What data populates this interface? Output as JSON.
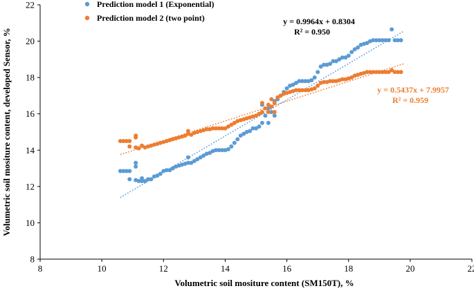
{
  "chart_data": {
    "type": "scatter",
    "xlabel": "Volumetric soil mositure content (SM150T), %",
    "ylabel": "Volumetric soil mositure content, developed Sensor, %",
    "xlim": [
      8,
      22
    ],
    "ylim": [
      8,
      22
    ],
    "xticks": [
      "8",
      "10",
      "12",
      "14",
      "16",
      "18",
      "20",
      "22"
    ],
    "yticks": [
      "8",
      "10",
      "12",
      "14",
      "16",
      "18",
      "20",
      "22"
    ],
    "grid": false,
    "legend_position": "top-left",
    "series": [
      {
        "name": "Prediction model 1 (Exponential)",
        "color": "#5B9BD5",
        "marker": "circle",
        "trendline": {
          "slope": 0.9964,
          "intercept": 0.8304,
          "x_range": [
            10.6,
            19.8
          ],
          "style": "dotted"
        },
        "equation": "y = 0.9964x + 0.8304",
        "r2": "R² = 0.950",
        "points": [
          [
            10.6,
            12.85
          ],
          [
            10.7,
            12.85
          ],
          [
            10.8,
            12.85
          ],
          [
            10.9,
            12.85
          ],
          [
            10.9,
            12.4
          ],
          [
            11.1,
            13.1
          ],
          [
            11.1,
            13.3
          ],
          [
            11.1,
            12.35
          ],
          [
            11.2,
            12.3
          ],
          [
            11.3,
            12.45
          ],
          [
            11.3,
            12.3
          ],
          [
            11.4,
            12.3
          ],
          [
            11.5,
            12.4
          ],
          [
            11.6,
            12.4
          ],
          [
            11.7,
            12.55
          ],
          [
            11.8,
            12.6
          ],
          [
            11.9,
            12.7
          ],
          [
            12.0,
            12.85
          ],
          [
            12.1,
            12.9
          ],
          [
            12.2,
            12.9
          ],
          [
            12.3,
            13.0
          ],
          [
            12.4,
            13.1
          ],
          [
            12.5,
            13.15
          ],
          [
            12.6,
            13.2
          ],
          [
            12.7,
            13.25
          ],
          [
            12.8,
            13.3
          ],
          [
            12.8,
            13.6
          ],
          [
            12.9,
            13.3
          ],
          [
            13.0,
            13.4
          ],
          [
            13.1,
            13.5
          ],
          [
            13.2,
            13.6
          ],
          [
            13.3,
            13.7
          ],
          [
            13.4,
            13.8
          ],
          [
            13.5,
            13.85
          ],
          [
            13.6,
            13.95
          ],
          [
            13.7,
            14.0
          ],
          [
            13.8,
            14.0
          ],
          [
            13.9,
            14.0
          ],
          [
            14.0,
            14.0
          ],
          [
            14.1,
            14.05
          ],
          [
            14.2,
            14.2
          ],
          [
            14.3,
            14.4
          ],
          [
            14.4,
            14.6
          ],
          [
            14.5,
            14.8
          ],
          [
            14.6,
            14.9
          ],
          [
            14.7,
            15.0
          ],
          [
            14.8,
            15.05
          ],
          [
            14.9,
            15.2
          ],
          [
            15.0,
            15.2
          ],
          [
            15.1,
            15.3
          ],
          [
            15.2,
            15.5
          ],
          [
            15.2,
            16.5
          ],
          [
            15.3,
            15.9
          ],
          [
            15.4,
            16.3
          ],
          [
            15.4,
            15.5
          ],
          [
            15.5,
            16.1
          ],
          [
            15.6,
            16.7
          ],
          [
            15.6,
            15.9
          ],
          [
            15.7,
            16.8
          ],
          [
            15.8,
            17.0
          ],
          [
            15.9,
            17.2
          ],
          [
            16.0,
            17.4
          ],
          [
            16.1,
            17.55
          ],
          [
            16.2,
            17.6
          ],
          [
            16.3,
            17.7
          ],
          [
            16.4,
            17.8
          ],
          [
            16.5,
            17.8
          ],
          [
            16.6,
            17.8
          ],
          [
            16.7,
            17.8
          ],
          [
            16.8,
            17.85
          ],
          [
            16.9,
            18.0
          ],
          [
            17.0,
            18.3
          ],
          [
            17.1,
            18.6
          ],
          [
            17.2,
            18.7
          ],
          [
            17.3,
            18.7
          ],
          [
            17.4,
            18.75
          ],
          [
            17.5,
            18.9
          ],
          [
            17.6,
            18.9
          ],
          [
            17.7,
            19.0
          ],
          [
            17.8,
            19.1
          ],
          [
            17.9,
            19.1
          ],
          [
            18.0,
            19.2
          ],
          [
            18.1,
            19.4
          ],
          [
            18.2,
            19.55
          ],
          [
            18.3,
            19.65
          ],
          [
            18.4,
            19.8
          ],
          [
            18.5,
            19.85
          ],
          [
            18.6,
            19.9
          ],
          [
            18.7,
            20.0
          ],
          [
            18.8,
            20.05
          ],
          [
            18.9,
            20.05
          ],
          [
            19.0,
            20.05
          ],
          [
            19.1,
            20.05
          ],
          [
            19.2,
            20.05
          ],
          [
            19.3,
            20.05
          ],
          [
            19.4,
            20.65
          ],
          [
            19.5,
            20.05
          ],
          [
            19.6,
            20.05
          ],
          [
            19.7,
            20.05
          ]
        ]
      },
      {
        "name": "Prediction model 2 (two point)",
        "color": "#ED7D31",
        "marker": "circle",
        "trendline": {
          "slope": 0.5437,
          "intercept": 7.9957,
          "x_range": [
            10.6,
            19.8
          ],
          "style": "dotted"
        },
        "equation": "y = 0.5437x + 7.9957",
        "r2": "R² = 0.959",
        "points": [
          [
            10.6,
            14.5
          ],
          [
            10.7,
            14.5
          ],
          [
            10.8,
            14.5
          ],
          [
            10.9,
            14.5
          ],
          [
            10.9,
            14.2
          ],
          [
            11.1,
            14.7
          ],
          [
            11.1,
            14.8
          ],
          [
            11.1,
            14.15
          ],
          [
            11.2,
            14.1
          ],
          [
            11.3,
            14.25
          ],
          [
            11.4,
            14.15
          ],
          [
            11.5,
            14.2
          ],
          [
            11.6,
            14.25
          ],
          [
            11.7,
            14.3
          ],
          [
            11.8,
            14.35
          ],
          [
            11.9,
            14.4
          ],
          [
            12.0,
            14.45
          ],
          [
            12.1,
            14.5
          ],
          [
            12.2,
            14.55
          ],
          [
            12.3,
            14.6
          ],
          [
            12.4,
            14.65
          ],
          [
            12.5,
            14.7
          ],
          [
            12.6,
            14.75
          ],
          [
            12.7,
            14.8
          ],
          [
            12.8,
            14.9
          ],
          [
            12.8,
            15.05
          ],
          [
            12.9,
            14.85
          ],
          [
            13.0,
            14.95
          ],
          [
            13.1,
            15.0
          ],
          [
            13.2,
            15.05
          ],
          [
            13.3,
            15.1
          ],
          [
            13.4,
            15.15
          ],
          [
            13.5,
            15.15
          ],
          [
            13.6,
            15.2
          ],
          [
            13.7,
            15.2
          ],
          [
            13.8,
            15.2
          ],
          [
            13.9,
            15.2
          ],
          [
            14.0,
            15.2
          ],
          [
            14.1,
            15.3
          ],
          [
            14.2,
            15.4
          ],
          [
            14.3,
            15.5
          ],
          [
            14.4,
            15.6
          ],
          [
            14.5,
            15.65
          ],
          [
            14.6,
            15.7
          ],
          [
            14.7,
            15.75
          ],
          [
            14.8,
            15.8
          ],
          [
            14.9,
            15.85
          ],
          [
            15.0,
            15.9
          ],
          [
            15.1,
            16.0
          ],
          [
            15.2,
            16.1
          ],
          [
            15.2,
            16.6
          ],
          [
            15.3,
            16.3
          ],
          [
            15.4,
            16.5
          ],
          [
            15.4,
            16.1
          ],
          [
            15.5,
            16.4
          ],
          [
            15.5,
            16.8
          ],
          [
            15.6,
            16.6
          ],
          [
            15.6,
            16.1
          ],
          [
            15.7,
            16.9
          ],
          [
            15.8,
            17.0
          ],
          [
            15.9,
            17.1
          ],
          [
            16.0,
            17.15
          ],
          [
            16.1,
            17.2
          ],
          [
            16.2,
            17.25
          ],
          [
            16.3,
            17.3
          ],
          [
            16.4,
            17.3
          ],
          [
            16.5,
            17.3
          ],
          [
            16.6,
            17.3
          ],
          [
            16.7,
            17.3
          ],
          [
            16.8,
            17.35
          ],
          [
            16.9,
            17.4
          ],
          [
            17.0,
            17.55
          ],
          [
            17.1,
            17.7
          ],
          [
            17.2,
            17.75
          ],
          [
            17.3,
            17.75
          ],
          [
            17.4,
            17.8
          ],
          [
            17.5,
            17.8
          ],
          [
            17.6,
            17.8
          ],
          [
            17.7,
            17.85
          ],
          [
            17.8,
            17.9
          ],
          [
            17.9,
            17.9
          ],
          [
            18.0,
            17.95
          ],
          [
            18.1,
            18.0
          ],
          [
            18.2,
            18.1
          ],
          [
            18.3,
            18.15
          ],
          [
            18.4,
            18.2
          ],
          [
            18.5,
            18.25
          ],
          [
            18.6,
            18.3
          ],
          [
            18.7,
            18.3
          ],
          [
            18.8,
            18.3
          ],
          [
            18.9,
            18.3
          ],
          [
            19.0,
            18.3
          ],
          [
            19.1,
            18.3
          ],
          [
            19.2,
            18.3
          ],
          [
            19.3,
            18.3
          ],
          [
            19.4,
            18.4
          ],
          [
            19.5,
            18.3
          ],
          [
            19.6,
            18.3
          ],
          [
            19.7,
            18.3
          ]
        ]
      }
    ]
  }
}
